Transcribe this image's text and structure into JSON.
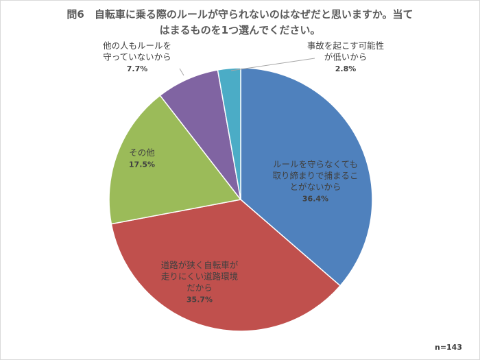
{
  "title_lines": [
    "問6　自転車に乗る際のルールが守られないのはなぜだと思いますか。当て",
    "はまるものを1つ選んでください。"
  ],
  "note": "n=143",
  "chart_data": {
    "type": "pie",
    "start_angle_deg": 0,
    "direction": "clockwise",
    "slices": [
      {
        "label_lines": [
          "ルールを守らなくても",
          "取り締まりで捕まるこ",
          "とがないから"
        ],
        "pct_label": "36.4%",
        "value": 36.4,
        "color": "#4f81bd"
      },
      {
        "label_lines": [
          "道路が狭く自転車が",
          "走りにくい道路環境",
          "だから"
        ],
        "pct_label": "35.7%",
        "value": 35.7,
        "color": "#c0504d"
      },
      {
        "label_lines": [
          "その他"
        ],
        "pct_label": "17.5%",
        "value": 17.5,
        "color": "#9bbb59"
      },
      {
        "label_lines": [
          "他の人もルールを",
          "守っていないから"
        ],
        "pct_label": "7.7%",
        "value": 7.7,
        "color": "#8064a2"
      },
      {
        "label_lines": [
          "事故を起こす可能性",
          "が低いから"
        ],
        "pct_label": "2.8%",
        "value": 2.8,
        "color": "#4bacc6"
      }
    ]
  }
}
